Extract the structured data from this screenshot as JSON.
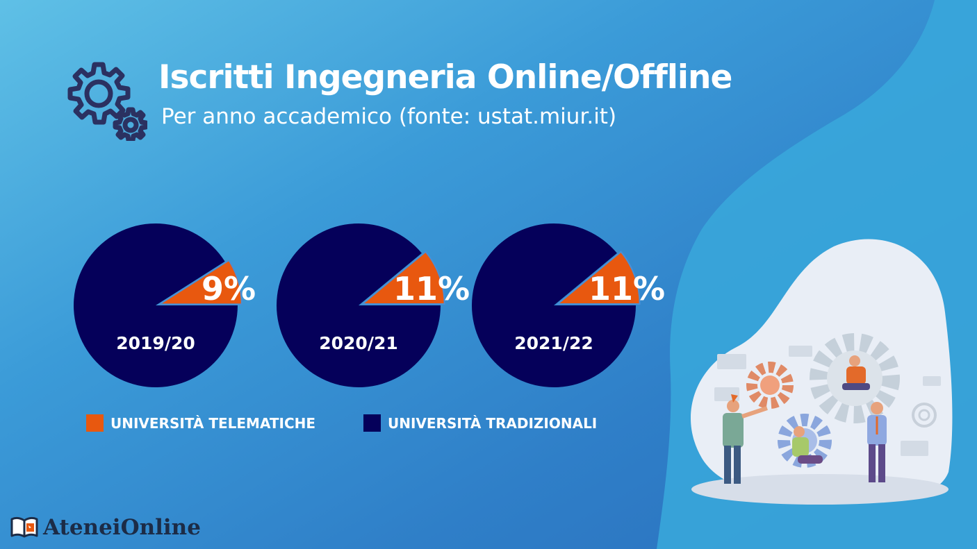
{
  "header": {
    "title": "Iscritti Ingegneria Online/Offline",
    "subtitle": "Per anno accademico (fonte: ustat.miur.it)",
    "icon": "gears-icon"
  },
  "colors": {
    "telematiche": "#e8580f",
    "tradizionali": "#05005a",
    "text": "#ffffff"
  },
  "chart_data": {
    "type": "pie",
    "charts": [
      {
        "category": "2019/20",
        "telematiche_pct": 9,
        "tradizionali_pct": 91,
        "label": "9%"
      },
      {
        "category": "2020/21",
        "telematiche_pct": 11,
        "tradizionali_pct": 89,
        "label": "11%"
      },
      {
        "category": "2021/22",
        "telematiche_pct": 11,
        "tradizionali_pct": 89,
        "label": "11%"
      }
    ],
    "legend": [
      "UNIVERSITÀ TELEMATICHE",
      "UNIVERSITÀ TRADIZIONALI"
    ],
    "legend_position": "bottom"
  },
  "legend": {
    "telematiche": "UNIVERSITÀ TELEMATICHE",
    "tradizionali": "UNIVERSITÀ TRADIZIONALI"
  },
  "brand": {
    "name": "AteneiOnline",
    "icon": "open-book-icon"
  },
  "illustration": {
    "icon": "team-gears-illustration"
  }
}
